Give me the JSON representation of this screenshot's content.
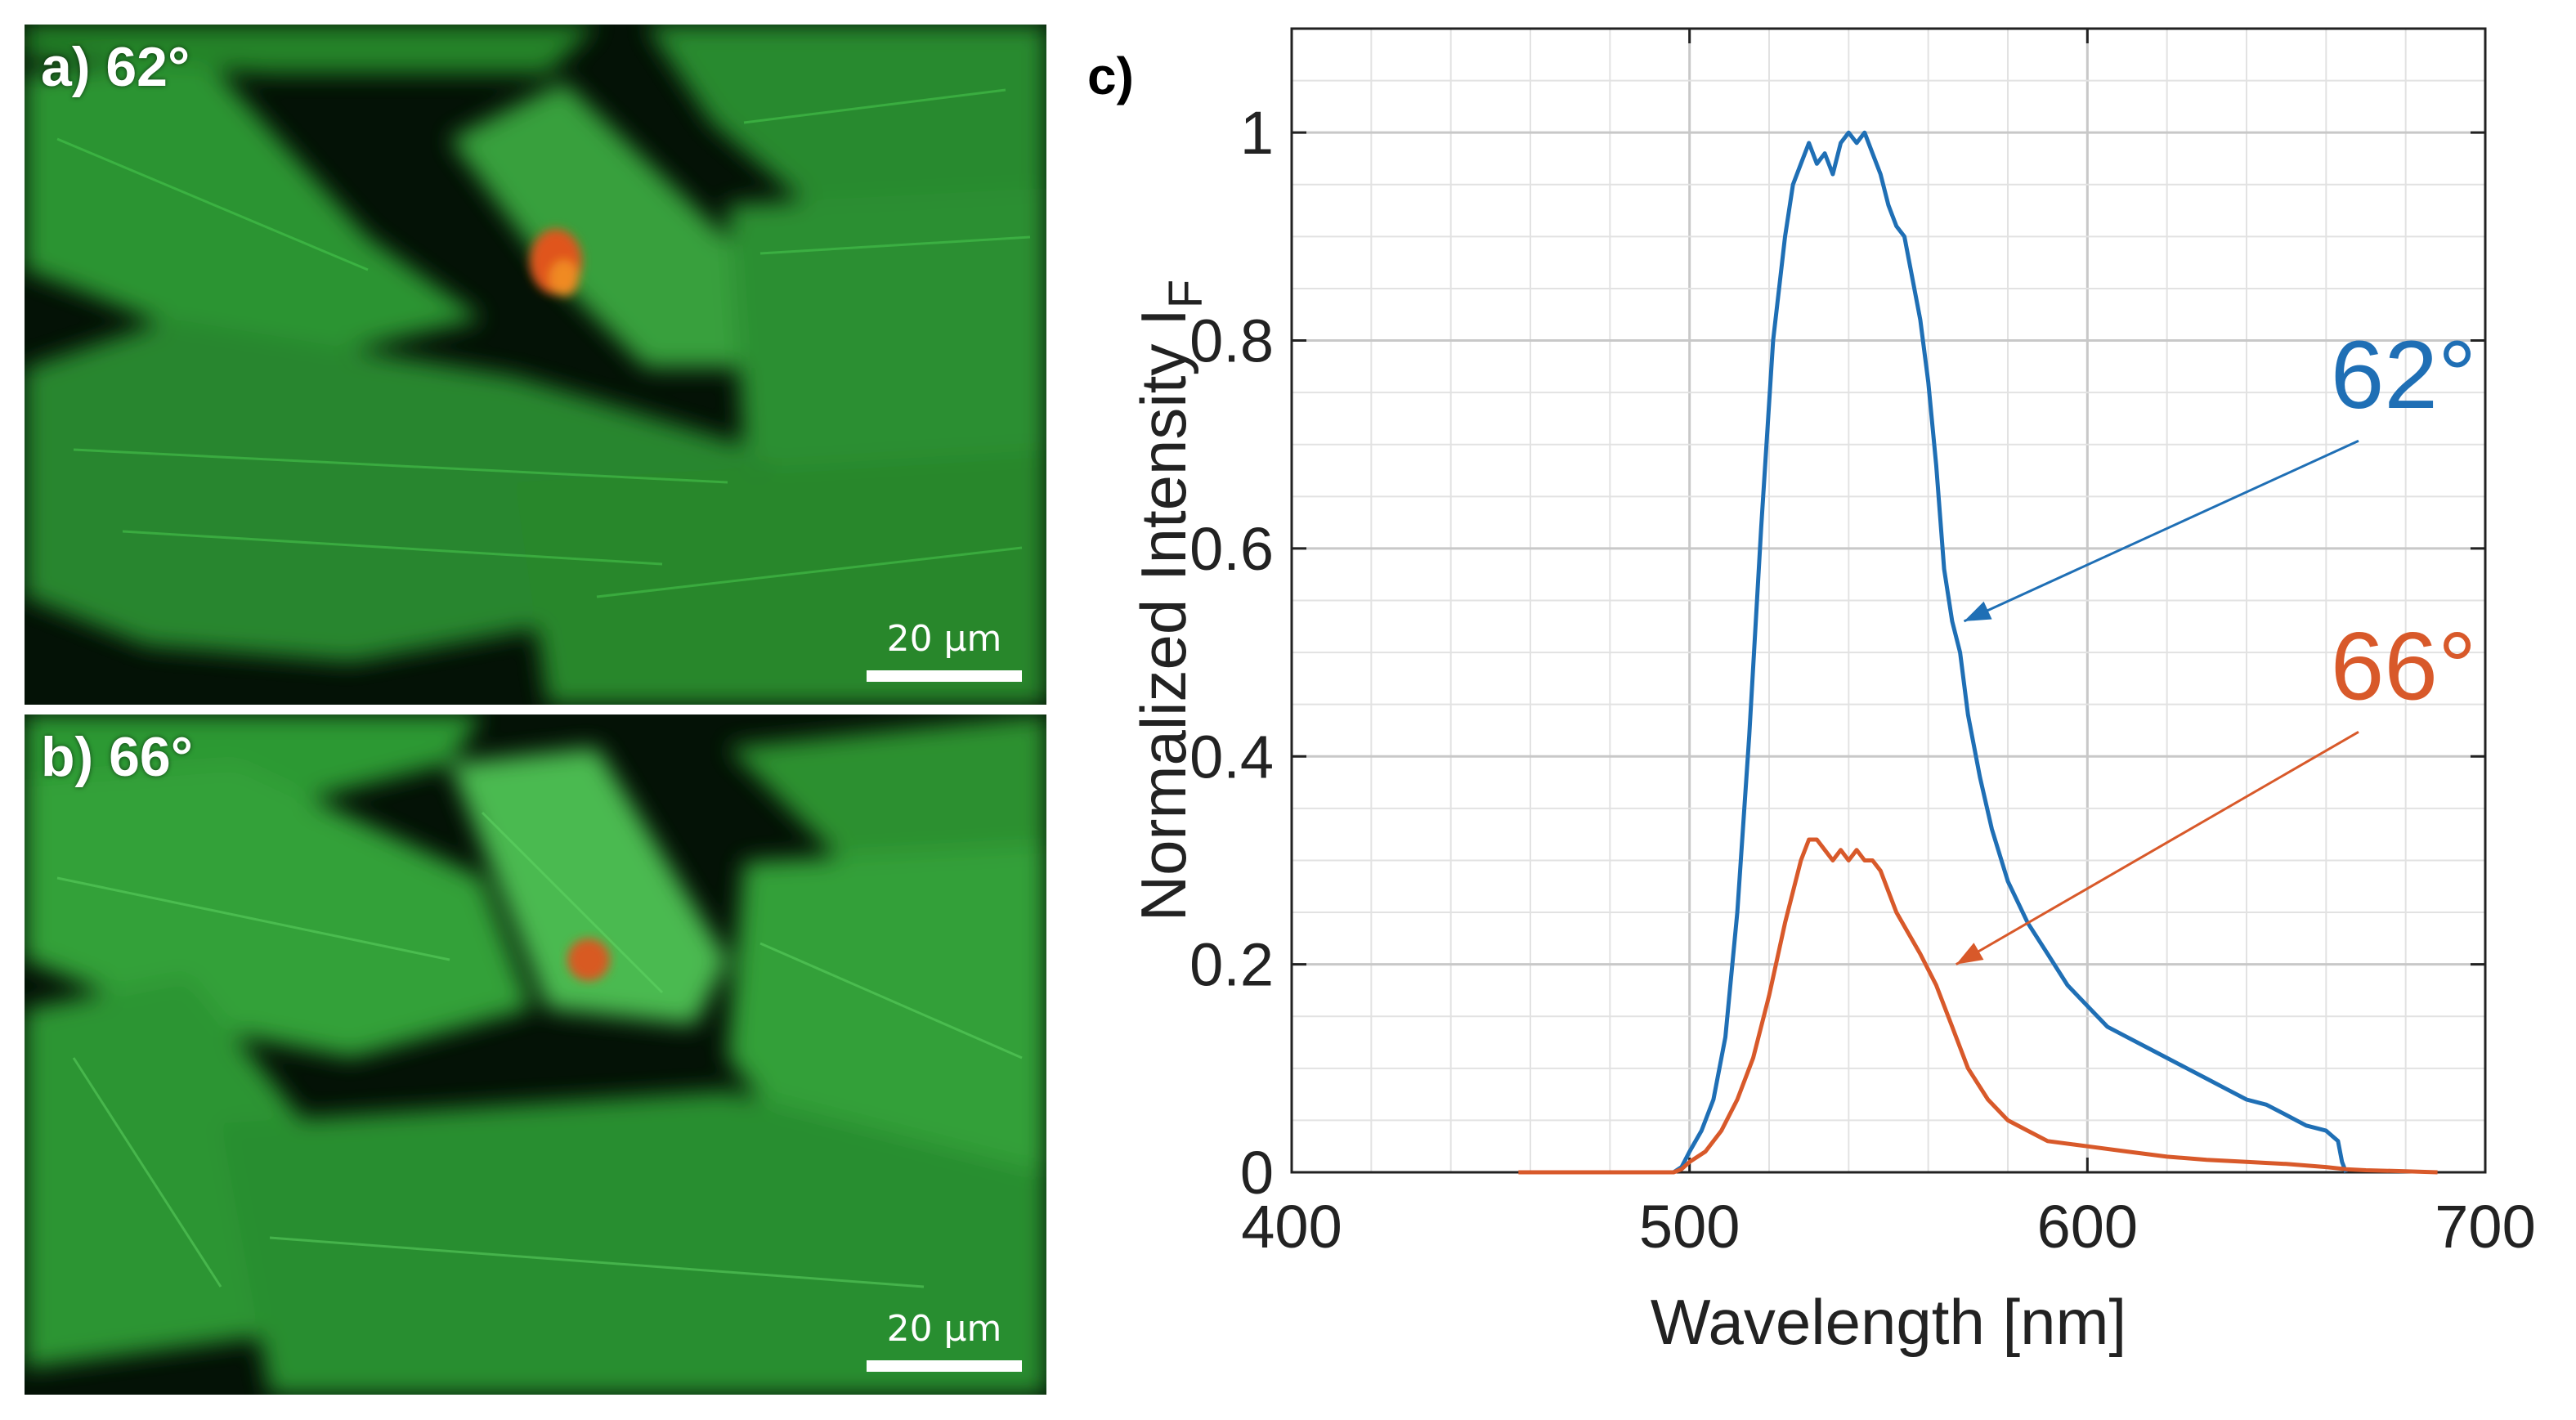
{
  "panels": [
    {
      "label": "a) 62°",
      "scale_bar": "20 µm"
    },
    {
      "label": "b) 66°",
      "scale_bar": "20 µm"
    }
  ],
  "colors": {
    "series_62": "#1f6fb5",
    "series_66": "#d8592a",
    "cell_green": "#35b53a",
    "nucleus_orange": "#e0541f"
  },
  "chart_data": {
    "type": "line",
    "panel_label": "c)",
    "title": "",
    "xlabel": "Wavelength [nm]",
    "ylabel": "Normalized Intensity I",
    "ylabel_subscript": "F",
    "xlim": [
      400,
      700
    ],
    "ylim": [
      0,
      1.1
    ],
    "xticks": [
      400,
      500,
      600,
      700
    ],
    "xtick_labels": [
      "400",
      "500",
      "600",
      "700"
    ],
    "yticks": [
      0,
      0.2,
      0.4,
      0.6,
      0.8,
      1
    ],
    "ytick_labels": [
      "0",
      "0.2",
      "0.4",
      "0.6",
      "0.8",
      "1"
    ],
    "grid": true,
    "series": [
      {
        "name": "62°",
        "color": "#1f6fb5",
        "x": [
          496,
          498,
          500,
          503,
          506,
          509,
          512,
          515,
          518,
          521,
          524,
          526,
          528,
          530,
          532,
          534,
          536,
          538,
          540,
          542,
          544,
          546,
          548,
          550,
          552,
          554,
          556,
          558,
          560,
          562,
          564,
          566,
          568,
          570,
          573,
          576,
          580,
          585,
          590,
          595,
          600,
          605,
          610,
          615,
          620,
          625,
          630,
          635,
          640,
          645,
          650,
          655,
          660,
          663,
          664,
          665
        ],
        "y": [
          0,
          0.005,
          0.02,
          0.04,
          0.07,
          0.13,
          0.25,
          0.42,
          0.62,
          0.8,
          0.9,
          0.95,
          0.97,
          0.99,
          0.97,
          0.98,
          0.96,
          0.99,
          1.0,
          0.99,
          1.0,
          0.98,
          0.96,
          0.93,
          0.91,
          0.9,
          0.86,
          0.82,
          0.76,
          0.68,
          0.58,
          0.53,
          0.5,
          0.44,
          0.38,
          0.33,
          0.28,
          0.24,
          0.21,
          0.18,
          0.16,
          0.14,
          0.13,
          0.12,
          0.11,
          0.1,
          0.09,
          0.08,
          0.07,
          0.065,
          0.055,
          0.045,
          0.04,
          0.03,
          0.01,
          0
        ]
      },
      {
        "name": "66°",
        "color": "#d8592a",
        "x": [
          457,
          470,
          480,
          490,
          496,
          498,
          500,
          504,
          508,
          512,
          516,
          520,
          524,
          526,
          528,
          530,
          532,
          534,
          536,
          538,
          540,
          542,
          544,
          546,
          548,
          550,
          552,
          555,
          558,
          562,
          566,
          570,
          575,
          580,
          585,
          590,
          600,
          610,
          620,
          630,
          640,
          650,
          660,
          665,
          670,
          680,
          688
        ],
        "y": [
          0,
          0,
          0,
          0,
          0,
          0.003,
          0.01,
          0.02,
          0.04,
          0.07,
          0.11,
          0.17,
          0.24,
          0.27,
          0.3,
          0.32,
          0.32,
          0.31,
          0.3,
          0.31,
          0.3,
          0.31,
          0.3,
          0.3,
          0.29,
          0.27,
          0.25,
          0.23,
          0.21,
          0.18,
          0.14,
          0.1,
          0.07,
          0.05,
          0.04,
          0.03,
          0.025,
          0.02,
          0.015,
          0.012,
          0.01,
          0.008,
          0.005,
          0.003,
          0.002,
          0.001,
          0
        ]
      }
    ],
    "annotations": [
      {
        "text": "62°",
        "color": "#1f6fb5",
        "arrow_to": [
          569,
          0.53
        ]
      },
      {
        "text": "66°",
        "color": "#d8592a",
        "arrow_to": [
          567,
          0.2
        ]
      }
    ]
  }
}
